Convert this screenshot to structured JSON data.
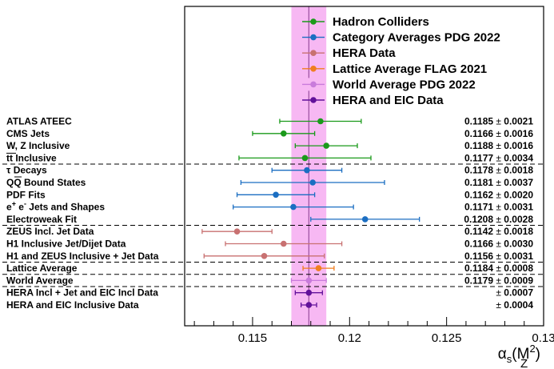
{
  "chart_data": {
    "type": "scatter",
    "xlabel_sym": "α",
    "xlabel_sub": "s",
    "xlabel_arg": "(M",
    "xlabel_arg_sub": "Z",
    "xlabel_arg_sup": "2",
    "xlabel_close": ")",
    "xlim": [
      0.1115,
      0.13
    ],
    "xticks": [
      {
        "value": 0.115,
        "label": "0.115"
      },
      {
        "value": 0.12,
        "label": "0.12"
      },
      {
        "value": 0.125,
        "label": "0.125"
      },
      {
        "value": 0.13,
        "label": "0.13"
      }
    ],
    "band": {
      "center": 0.1179,
      "halfwidth": 0.0009,
      "color": "#f7b8f3"
    },
    "legend": [
      {
        "name": "Hadron Colliders",
        "color": "#1a9a1a"
      },
      {
        "name": "Category Averages PDG 2022",
        "color": "#1b6ec2"
      },
      {
        "name": "HERA Data",
        "color": "#c87171"
      },
      {
        "name": "Lattice Average FLAG 2021",
        "color": "#f07e1f"
      },
      {
        "name": "World Average PDG 2022",
        "color": "#c97bdb",
        "band": true
      },
      {
        "name": "HERA and EIC Data",
        "color": "#62119a"
      }
    ],
    "measurements": [
      {
        "label": "ATLAS ATEEC",
        "value": 0.1185,
        "err": 0.0021,
        "text_value": "0.1185",
        "text_err": "0.0021",
        "color": "#1a9a1a"
      },
      {
        "label": "CMS Jets",
        "value": 0.1166,
        "err": 0.0016,
        "text_value": "0.1166",
        "text_err": "0.0016",
        "color": "#1a9a1a"
      },
      {
        "label": "W, Z Inclusive",
        "value": 0.1188,
        "err": 0.0016,
        "text_value": "0.1188",
        "text_err": "0.0016",
        "color": "#1a9a1a"
      },
      {
        "label": "tt Inclusive",
        "value": 0.1177,
        "err": 0.0034,
        "text_value": "0.1177",
        "text_err": "0.0034",
        "color": "#1a9a1a"
      },
      {
        "label": "τ Decays",
        "value": 0.1178,
        "err": 0.0018,
        "text_value": "0.1178",
        "text_err": "0.0018",
        "color": "#1b6ec2"
      },
      {
        "label": "QQ Bound States",
        "value": 0.1181,
        "err": 0.0037,
        "text_value": "0.1181",
        "text_err": "0.0037",
        "color": "#1b6ec2"
      },
      {
        "label": "PDF Fits",
        "value": 0.1162,
        "err": 0.002,
        "text_value": "0.1162",
        "text_err": "0.0020",
        "color": "#1b6ec2"
      },
      {
        "label": "e+ e- Jets and Shapes",
        "value": 0.1171,
        "err": 0.0031,
        "text_value": "0.1171",
        "text_err": "0.0031",
        "color": "#1b6ec2"
      },
      {
        "label": "Electroweak Fit",
        "value": 0.1208,
        "err": 0.0028,
        "text_value": "0.1208",
        "text_err": "0.0028",
        "color": "#1b6ec2"
      },
      {
        "label": "ZEUS Incl. Jet Data",
        "value": 0.1142,
        "err": 0.0018,
        "text_value": "0.1142",
        "text_err": "0.0018",
        "color": "#c87171"
      },
      {
        "label": "H1 Inclusive Jet/Dijet Data",
        "value": 0.1166,
        "err": 0.003,
        "text_value": "0.1166",
        "text_err": "0.0030",
        "color": "#c87171"
      },
      {
        "label": "H1 and ZEUS Inclusive + Jet Data",
        "value": 0.1156,
        "err": 0.0031,
        "text_value": "0.1156",
        "text_err": "0.0031",
        "color": "#c87171"
      },
      {
        "label": "Lattice Average",
        "value": 0.1184,
        "err": 0.0008,
        "text_value": "0.1184",
        "text_err": "0.0008",
        "color": "#f07e1f"
      },
      {
        "label": "World Average",
        "value": 0.1179,
        "err": 0.0009,
        "text_value": "0.1179",
        "text_err": "0.0009",
        "color": "#c97bdb"
      },
      {
        "label": "HERA Incl + Jet and EIC Incl Data",
        "value": 0.1179,
        "err": 0.0007,
        "text_value": "",
        "text_err": "0.0007",
        "color": "#62119a"
      },
      {
        "label": "HERA and EIC Inclusive Data",
        "value": 0.1179,
        "err": 0.0004,
        "text_value": "",
        "text_err": "0.0004",
        "color": "#62119a"
      }
    ],
    "group_ends": [
      3,
      8,
      11,
      12,
      13
    ]
  }
}
